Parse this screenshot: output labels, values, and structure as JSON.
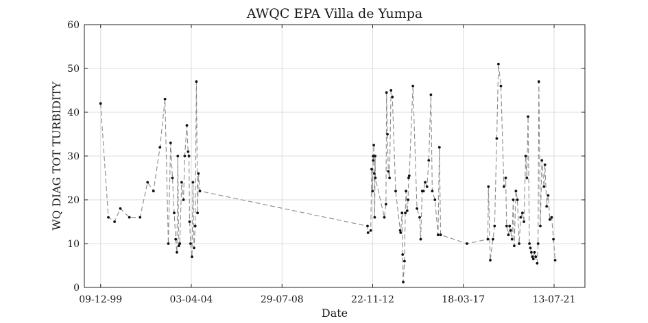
{
  "chart_data": {
    "type": "line",
    "title": "AWQC EPA Villa de Yumpa",
    "xlabel": "Date",
    "ylabel": "WQ DIAG TOT TURBIDITY",
    "x_type": "date",
    "x_tick_format": "DD-MM-YY",
    "xlim": [
      "1999-03-01",
      "2022-12-31"
    ],
    "xticks": [
      "1999-12-09",
      "2004-04-03",
      "2008-07-29",
      "2012-11-22",
      "2017-03-18",
      "2021-07-13"
    ],
    "xtick_labels": [
      "09-12-99",
      "03-04-04",
      "29-07-08",
      "22-11-12",
      "18-03-17",
      "13-07-21"
    ],
    "ylim": [
      0,
      60
    ],
    "yticks": [
      0,
      10,
      20,
      30,
      40,
      50,
      60
    ],
    "ytick_labels": [
      "0",
      "10",
      "20",
      "30",
      "40",
      "50",
      "60"
    ],
    "grid": true,
    "colors": {
      "line": "#8a8a8a",
      "marker": "#111111"
    },
    "series": [
      {
        "x": [
          "1999-12-09",
          "2000-04-22",
          "2000-08-08",
          "2000-11-16",
          "2001-04-22",
          "2001-10-24",
          "2002-03-05",
          "2002-06-15",
          "2002-10-06",
          "2003-01-01",
          "2003-03-01",
          "2003-04-09",
          "2003-05-12",
          "2003-06-10",
          "2003-07-06",
          "2003-07-28",
          "2003-08-12",
          "2003-08-31",
          "2003-09-16",
          "2003-10-18",
          "2003-11-19",
          "2003-12-11",
          "2004-01-17",
          "2004-02-07",
          "2004-02-23",
          "2004-03-05",
          "2004-03-21",
          "2004-04-15",
          "2004-05-02",
          "2004-05-21",
          "2004-06-10",
          "2004-07-01",
          "2004-07-21",
          "2004-08-06",
          "2004-08-30",
          "2012-08-24",
          "2012-09-02",
          "2012-10-19",
          "2012-11-04",
          "2012-11-20",
          "2012-11-29",
          "2012-12-01",
          "2012-12-11",
          "2012-12-19",
          "2012-12-27",
          "2013-01-04",
          "2013-01-07",
          "2013-06-13",
          "2013-07-11",
          "2013-07-21",
          "2013-08-05",
          "2013-08-21",
          "2013-09-11",
          "2013-10-06",
          "2013-10-30",
          "2013-12-27",
          "2014-03-15",
          "2014-03-23",
          "2014-04-16",
          "2014-04-27",
          "2014-05-07",
          "2014-05-29",
          "2014-06-12",
          "2014-06-24",
          "2014-07-15",
          "2014-07-30",
          "2014-08-09",
          "2014-08-20",
          "2014-10-23",
          "2015-01-01",
          "2015-02-17",
          "2015-03-07",
          "2015-04-02",
          "2015-04-25",
          "2015-05-23",
          "2015-06-24",
          "2015-07-25",
          "2015-09-01",
          "2015-09-24",
          "2015-11-10",
          "2016-01-02",
          "2016-01-26",
          "2016-02-17",
          "2017-05-20",
          "2018-05-17",
          "2018-05-28",
          "2018-06-29",
          "2018-08-15",
          "2018-09-12",
          "2018-10-19",
          "2018-11-18",
          "2018-12-31",
          "2019-02-21",
          "2019-03-24",
          "2019-04-09",
          "2019-05-11",
          "2019-06-01",
          "2019-06-17",
          "2019-07-12",
          "2019-08-03",
          "2019-08-20",
          "2019-09-18",
          "2019-10-15",
          "2019-11-13",
          "2019-12-10",
          "2020-01-10",
          "2020-02-05",
          "2020-03-06",
          "2020-03-26",
          "2020-04-16",
          "2020-05-10",
          "2020-05-27",
          "2020-06-13",
          "2020-06-30",
          "2020-07-17",
          "2020-08-07",
          "2020-08-27",
          "2020-09-22",
          "2020-10-07",
          "2020-10-21",
          "2020-11-16",
          "2020-12-12",
          "2021-01-18",
          "2021-02-04",
          "2021-03-06",
          "2021-04-01",
          "2021-05-01",
          "2021-06-01",
          "2021-07-01",
          "2021-08-01"
        ],
        "y": [
          42,
          16,
          15,
          18,
          16,
          16,
          24,
          22,
          32,
          43,
          10,
          33,
          25,
          17,
          11,
          8,
          30,
          9.5,
          10,
          24,
          20,
          30,
          37,
          31,
          30,
          15,
          10,
          7,
          24,
          9,
          14,
          47,
          17,
          26,
          22,
          14,
          12.5,
          13,
          27,
          22,
          30,
          29,
          32.5,
          26,
          16,
          30,
          25,
          16,
          19,
          44.5,
          35,
          26.5,
          25,
          45,
          43.5,
          22,
          13,
          12.5,
          17,
          7.5,
          1.2,
          6,
          17,
          22,
          17.5,
          20,
          25,
          25.5,
          46,
          18,
          16,
          11,
          22,
          22,
          24,
          23,
          29,
          44,
          22,
          20,
          12,
          32,
          12,
          10,
          11,
          23,
          6.2,
          11,
          14,
          34,
          51,
          46,
          23,
          25,
          14,
          12,
          14,
          13,
          11,
          20,
          9.5,
          22,
          20,
          10,
          16,
          17,
          15,
          30,
          25,
          39,
          10,
          9,
          8,
          7,
          6.5,
          8,
          7,
          5.5,
          10,
          47,
          14,
          29,
          23,
          28,
          18.5,
          21,
          15.5,
          16,
          11,
          6.2
        ]
      }
    ]
  }
}
